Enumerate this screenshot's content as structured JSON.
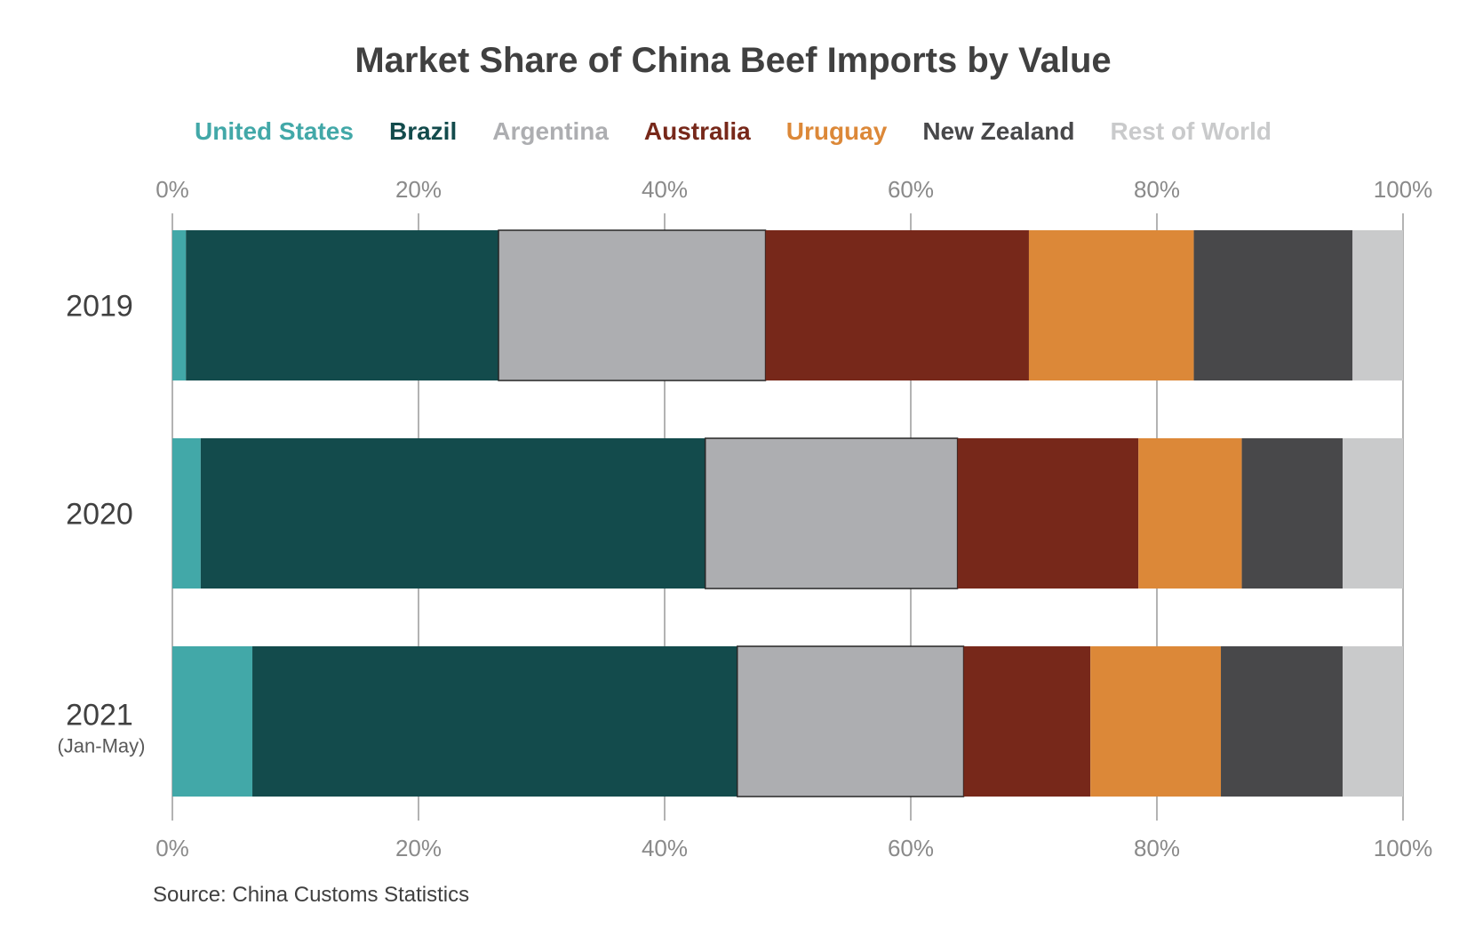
{
  "chart_data": {
    "type": "bar",
    "orientation": "horizontal",
    "stacked": true,
    "title": "Market Share of China Beef Imports by Value",
    "categories": [
      "2019",
      "2020",
      "2021"
    ],
    "category_sublabels": [
      "",
      "",
      "(Jan-May)"
    ],
    "series": [
      {
        "name": "United States",
        "color": "#42A8A8",
        "values": [
          1.1,
          2.3,
          6.5
        ]
      },
      {
        "name": "Brazil",
        "color": "#134B4C",
        "values": [
          25.4,
          41.0,
          39.4
        ]
      },
      {
        "name": "Argentina",
        "color": "#ADAEB1",
        "values": [
          21.7,
          20.5,
          18.4
        ]
      },
      {
        "name": "Australia",
        "color": "#77281A",
        "values": [
          21.4,
          14.7,
          10.3
        ]
      },
      {
        "name": "Uruguay",
        "color": "#DC8838",
        "values": [
          13.4,
          8.4,
          10.6
        ]
      },
      {
        "name": "New Zealand",
        "color": "#48484A",
        "values": [
          12.9,
          8.2,
          9.9
        ]
      },
      {
        "name": "Rest of World",
        "color": "#C9CACB",
        "values": [
          4.1,
          4.9,
          4.9
        ]
      }
    ],
    "xlim": [
      0,
      100
    ],
    "x_ticks": [
      "0%",
      "20%",
      "40%",
      "60%",
      "80%",
      "100%"
    ],
    "x_tick_values": [
      0,
      20,
      40,
      60,
      80,
      100
    ],
    "grid": true,
    "legend_position": "top",
    "source": "Source: China Customs Statistics"
  }
}
